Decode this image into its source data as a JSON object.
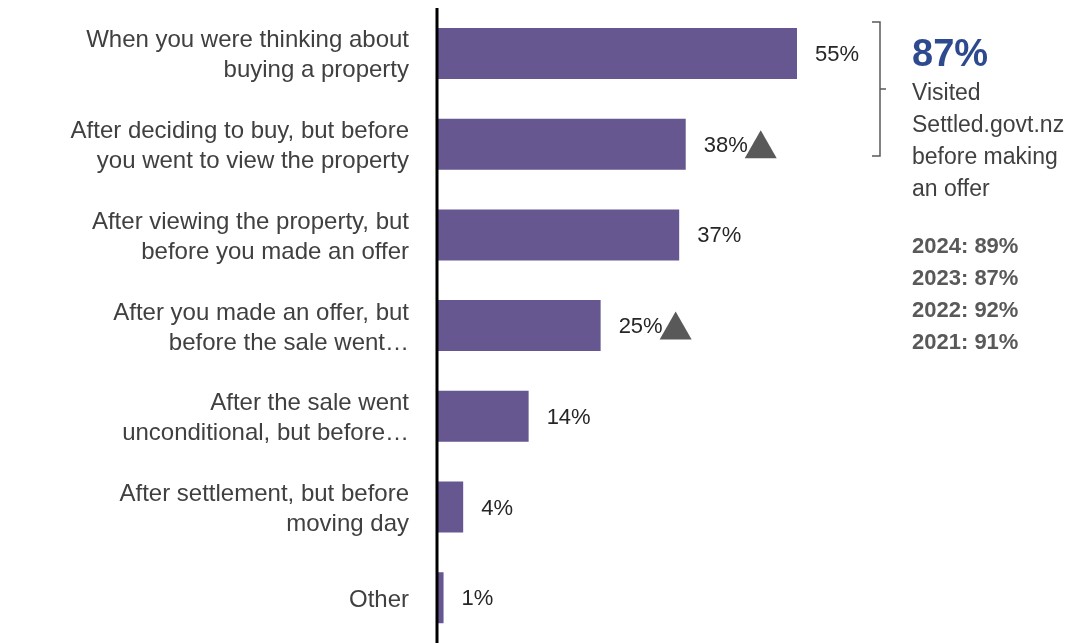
{
  "chart_data": {
    "type": "bar",
    "orientation": "horizontal",
    "categories": [
      "When you were thinking about buying a property",
      "After deciding to buy, but before you went to view the property",
      "After viewing the property, but before you made an offer",
      "After you made an offer, but before the sale went…",
      "After the sale went unconditional, but before…",
      "After settlement, but before moving day",
      "Other"
    ],
    "values": [
      55,
      38,
      37,
      25,
      14,
      4,
      1
    ],
    "value_labels": [
      "55%",
      "38%",
      "37%",
      "25%",
      "14%",
      "4%",
      "1%"
    ],
    "color": "#665791",
    "annotations": [
      "87%",
      "Visited Settled.govt.nz before making an offer",
      "2024: 89%",
      "2023: 87%",
      "2022: 92%",
      "2021: 91%"
    ]
  }
}
